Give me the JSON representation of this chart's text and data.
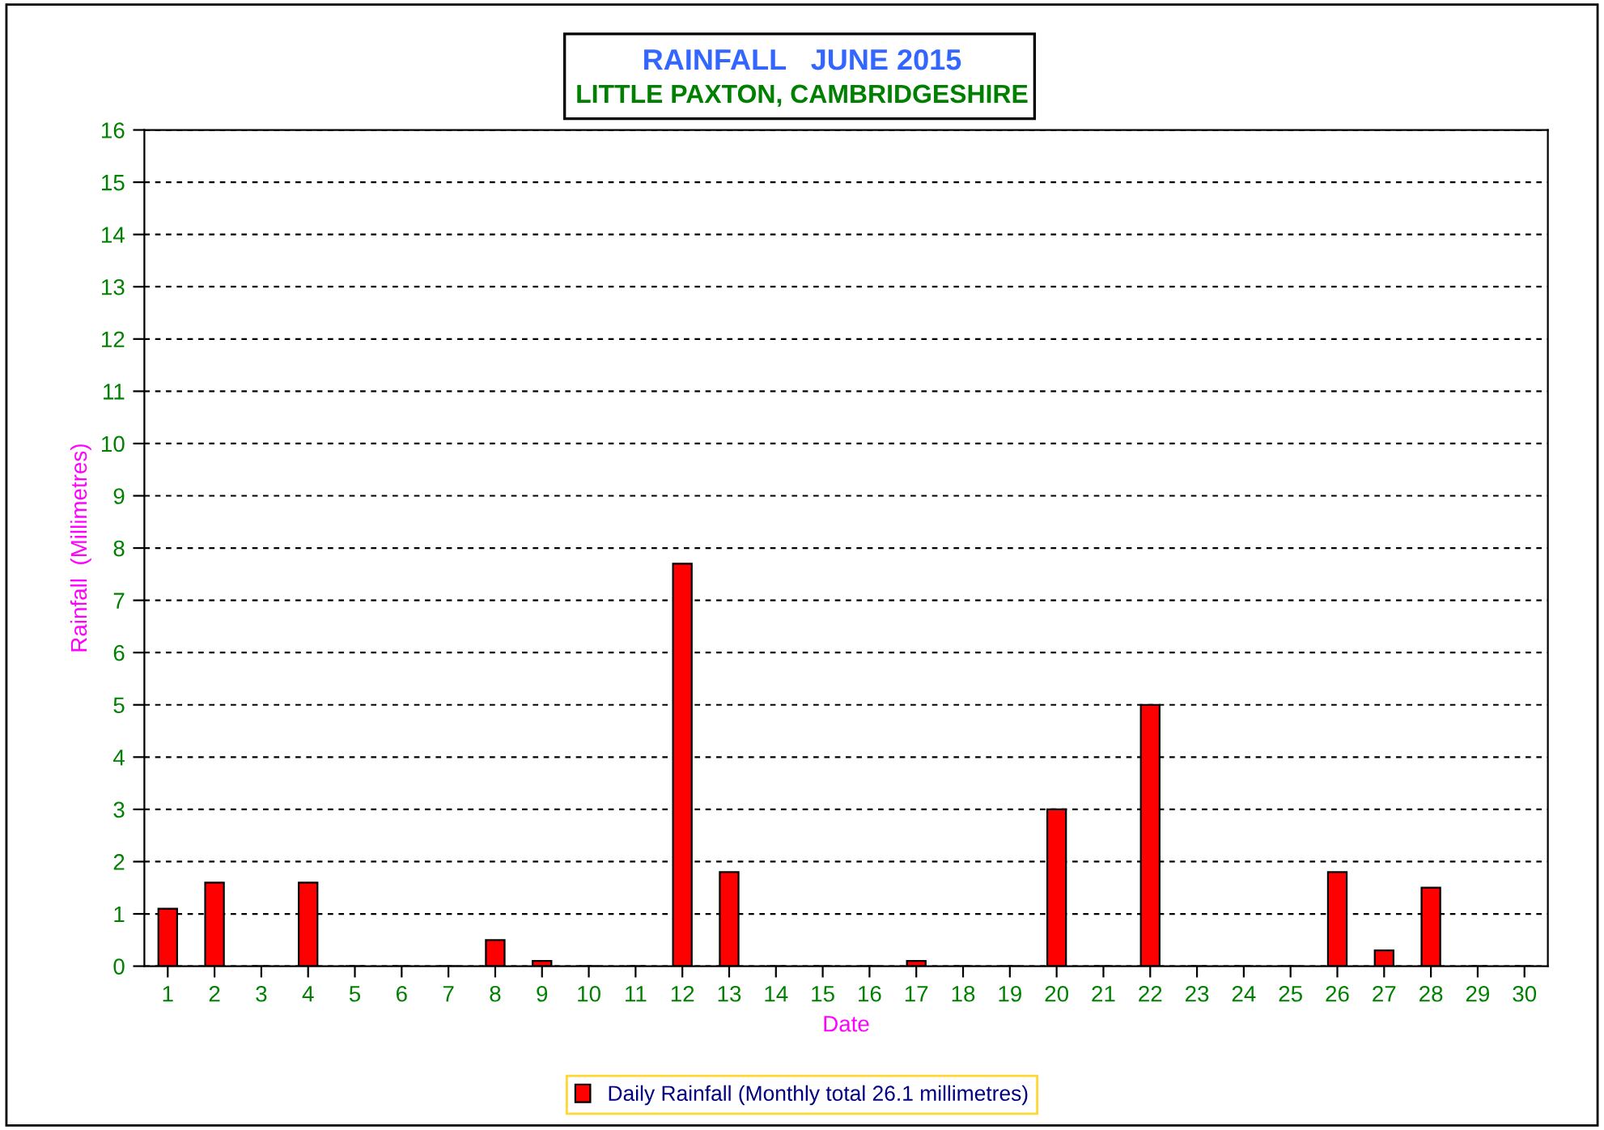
{
  "chart_data": {
    "type": "bar",
    "title": "RAINFALL   JUNE 2015",
    "subtitle": "LITTLE PAXTON, CAMBRIDGESHIRE",
    "xlabel": "Date",
    "ylabel": "Rainfall  (Millimetres)",
    "categories": [
      "1",
      "2",
      "3",
      "4",
      "5",
      "6",
      "7",
      "8",
      "9",
      "10",
      "11",
      "12",
      "13",
      "14",
      "15",
      "16",
      "17",
      "18",
      "19",
      "20",
      "21",
      "22",
      "23",
      "24",
      "25",
      "26",
      "27",
      "28",
      "29",
      "30"
    ],
    "series": [
      {
        "name": "Daily Rainfall (Monthly total 26.1 millimetres)",
        "color": "#ff0000",
        "values": [
          1.1,
          1.6,
          0,
          1.6,
          0,
          0,
          0,
          0.5,
          0.1,
          0,
          0,
          7.7,
          1.8,
          0,
          0,
          0,
          0.1,
          0,
          0,
          3.0,
          0,
          5.0,
          0,
          0,
          0,
          1.8,
          0.3,
          1.5,
          0,
          0
        ]
      }
    ],
    "ylim": [
      0,
      16
    ],
    "yticks": [
      0,
      1,
      2,
      3,
      4,
      5,
      6,
      7,
      8,
      9,
      10,
      11,
      12,
      13,
      14,
      15,
      16
    ],
    "grid": "y",
    "legend": "bottom"
  }
}
